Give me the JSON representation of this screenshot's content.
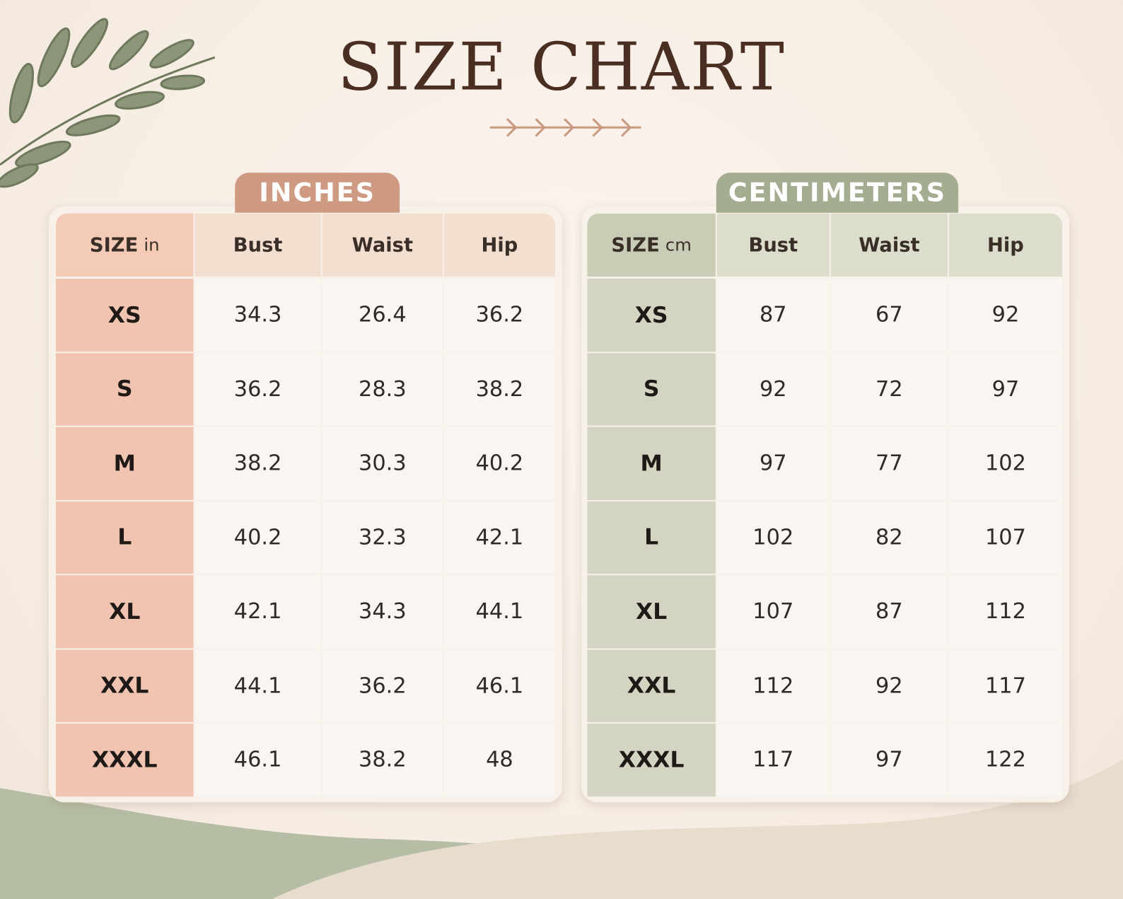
{
  "title": "SIZE CHART",
  "tables": [
    {
      "tab": "INCHES",
      "header": {
        "size": "SIZE",
        "unit": "in",
        "columns": [
          "Bust",
          "Waist",
          "Hip"
        ]
      },
      "rows": [
        [
          "XS",
          "34.3",
          "26.4",
          "36.2"
        ],
        [
          "S",
          "36.2",
          "28.3",
          "38.2"
        ],
        [
          "M",
          "38.2",
          "30.3",
          "40.2"
        ],
        [
          "L",
          "40.2",
          "32.3",
          "42.1"
        ],
        [
          "XL",
          "42.1",
          "34.3",
          "44.1"
        ],
        [
          "XXL",
          "44.1",
          "36.2",
          "46.1"
        ],
        [
          "XXXL",
          "46.1",
          "38.2",
          "48"
        ]
      ]
    },
    {
      "tab": "CENTIMETERS",
      "header": {
        "size": "SIZE",
        "unit": "cm",
        "columns": [
          "Bust",
          "Waist",
          "Hip"
        ]
      },
      "rows": [
        [
          "XS",
          "87",
          "67",
          "92"
        ],
        [
          "S",
          "92",
          "72",
          "97"
        ],
        [
          "M",
          "97",
          "77",
          "102"
        ],
        [
          "L",
          "102",
          "82",
          "107"
        ],
        [
          "XL",
          "107",
          "87",
          "112"
        ],
        [
          "XXL",
          "112",
          "92",
          "117"
        ],
        [
          "XXXL",
          "117",
          "97",
          "122"
        ]
      ]
    }
  ]
}
